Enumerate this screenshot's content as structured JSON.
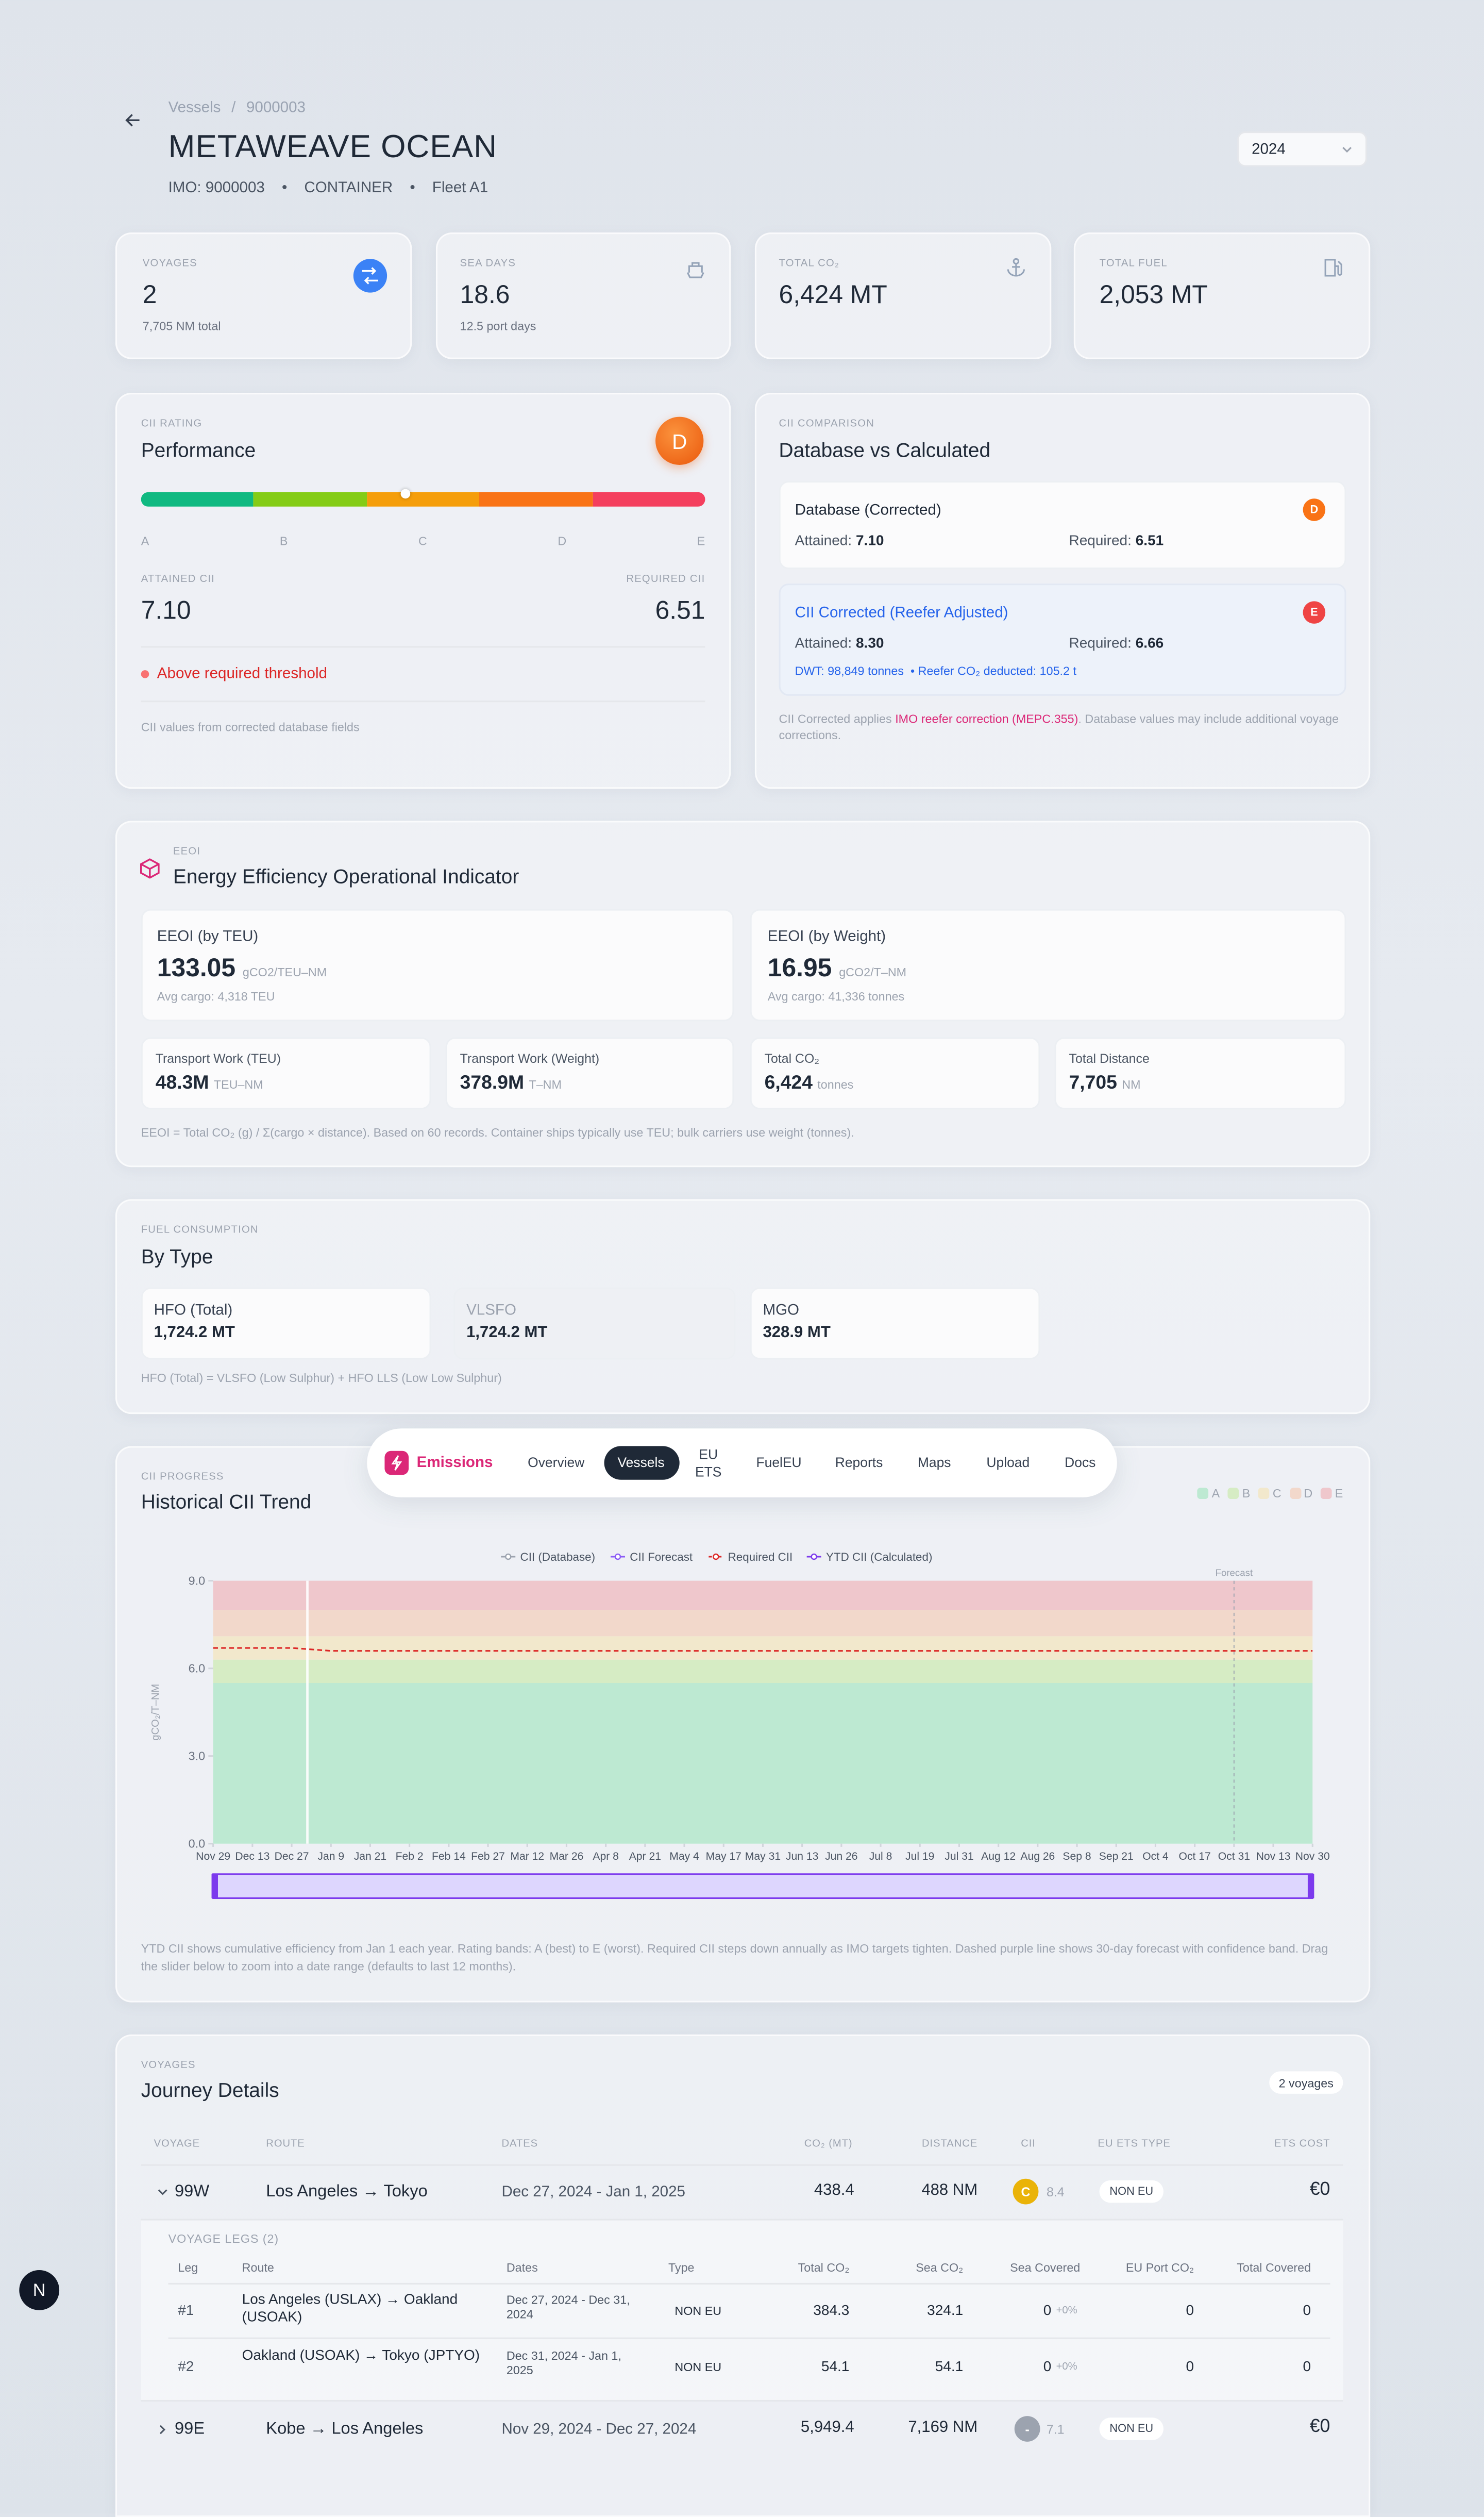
{
  "breadcrumb": [
    "Vessels",
    "9000003"
  ],
  "breadcrumb_separator": "/",
  "vessel": {
    "name": "METAWEAVE OCEAN",
    "imo": "IMO: 9000003",
    "type": "CONTAINER",
    "fleet": "Fleet A1"
  },
  "meta_separator": "•",
  "year_select": "2024",
  "stats": [
    {
      "label": "VOYAGES",
      "value": "2",
      "sub": "7,705 NM total"
    },
    {
      "label": "SEA DAYS",
      "value": "18.6",
      "sub": "12.5 port days"
    },
    {
      "label": "TOTAL CO₂",
      "value": "6,424 MT"
    },
    {
      "label": "TOTAL FUEL",
      "value": "2,053 MT"
    }
  ],
  "cii_rating": {
    "eyebrow": "CII RATING",
    "title": "Performance",
    "grade": "D",
    "scale": [
      "A",
      "B",
      "C",
      "D",
      "E"
    ],
    "attained_label": "ATTAINED CII",
    "attained": "7.10",
    "required_label": "REQUIRED CII",
    "required": "6.51",
    "status": "Above required threshold",
    "note": "CII values from corrected database fields"
  },
  "cii_comparison": {
    "eyebrow": "CII COMPARISON",
    "title": "Database vs Calculated",
    "attained_label": "Attained:",
    "required_label": "Required:",
    "database": {
      "title": "Database (Corrected)",
      "grade": "D",
      "attained": "7.10",
      "required": "6.51"
    },
    "corrected": {
      "title": "CII Corrected (Reefer Adjusted)",
      "grade": "E",
      "attained": "8.30",
      "required": "6.66",
      "dwt": "DWT: 98,849 tonnes",
      "reefer": "• Reefer CO₂ deducted: 105.2 t"
    },
    "note_start": "CII Corrected applies ",
    "note_link": "IMO reefer correction (MEPC.355)",
    "note_end": ". Database values may include additional voyage corrections."
  },
  "eeoi": {
    "eyebrow": "EEOI",
    "title": "Energy Efficiency Operational Indicator",
    "main": [
      {
        "label": "EEOI (by TEU)",
        "value": "133.05",
        "unit": "gCO2/TEU–NM",
        "sub": "Avg cargo: 4,318 TEU"
      },
      {
        "label": "EEOI (by Weight)",
        "value": "16.95",
        "unit": "gCO2/T–NM",
        "sub": "Avg cargo: 41,336 tonnes"
      }
    ],
    "metrics": [
      {
        "label": "Transport Work (TEU)",
        "value": "48.3M",
        "unit": "TEU–NM"
      },
      {
        "label": "Transport Work (Weight)",
        "value": "378.9M",
        "unit": "T–NM"
      },
      {
        "label": "Total CO₂",
        "value": "6,424",
        "unit": "tonnes"
      },
      {
        "label": "Total Distance",
        "value": "7,705",
        "unit": "NM"
      }
    ],
    "note": "EEOI = Total CO₂ (g) / Σ(cargo × distance). Based on 60 records. Container ships typically use TEU; bulk carriers use weight (tonnes)."
  },
  "fuel": {
    "eyebrow": "FUEL CONSUMPTION",
    "title": "By Type",
    "items": [
      {
        "label": "HFO (Total)",
        "value": "1,724.2 MT"
      },
      {
        "label": "VLSFO",
        "value": "1,724.2 MT"
      },
      {
        "label": "MGO",
        "value": "328.9 MT"
      }
    ],
    "note": "HFO (Total) = VLSFO (Low Sulphur) + HFO LLS (Low Low Sulphur)"
  },
  "nav": {
    "brand": "Emissions",
    "items": [
      "Overview",
      "Vessels",
      "EU\nETS",
      "FuelEU",
      "Reports",
      "Maps",
      "Upload",
      "Docs"
    ],
    "active": "Vessels"
  },
  "chart_eyebrow": "CII PROGRESS",
  "chart_data": {
    "type": "line",
    "title": "Historical CII Trend",
    "y_label": "gCO₂/T–NM",
    "categories": [
      "Nov 29",
      "Dec 13",
      "Dec 27",
      "Jan 9",
      "Jan 21",
      "Feb 2",
      "Feb 14",
      "Feb 27",
      "Mar 12",
      "Mar 26",
      "Apr 8",
      "Apr 21",
      "May 4",
      "May 17",
      "May 31",
      "Jun 13",
      "Jun 26",
      "Jul 8",
      "Jul 19",
      "Jul 31",
      "Aug 12",
      "Aug 26",
      "Sep 8",
      "Sep 21",
      "Oct 4",
      "Oct 17",
      "Oct 31",
      "Nov 13",
      "Nov 30"
    ],
    "ylim": [
      0,
      9
    ],
    "yticks": [
      {
        "value": 0,
        "label": "0.0"
      },
      {
        "value": 3,
        "label": "3.0"
      },
      {
        "value": 6,
        "label": "6.0"
      },
      {
        "value": 9,
        "label": "9.0"
      }
    ],
    "bands": [
      {
        "name": "A",
        "color": "#bde9d2",
        "upper": 5.5
      },
      {
        "name": "B",
        "color": "#d6ecc4",
        "upper": 6.3
      },
      {
        "name": "C",
        "color": "#f2e8cc",
        "upper": 7.1
      },
      {
        "name": "D",
        "color": "#f2d8cb",
        "upper": 8.0
      },
      {
        "name": "E",
        "color": "#efc7cc"
      }
    ],
    "series": [
      {
        "name": "Required CII",
        "color": "#dc2626",
        "dashed": true,
        "values": [
          6.7,
          6.7,
          6.7,
          6.6,
          6.6,
          6.6,
          6.6,
          6.6,
          6.6,
          6.6,
          6.6,
          6.6,
          6.6,
          6.6,
          6.6,
          6.6,
          6.6,
          6.6,
          6.6,
          6.6,
          6.6,
          6.6,
          6.6,
          6.6,
          6.6,
          6.6,
          6.6,
          6.6,
          6.6
        ]
      }
    ],
    "other_legend": [
      {
        "name": "CII (Database)",
        "color": "#9ca3af"
      },
      {
        "name": "CII Forecast",
        "color": "#8b5cf6"
      },
      {
        "name": "YTD CII (Calculated)",
        "color": "#7c3aed"
      }
    ],
    "forecast_label": "Forecast",
    "forecast_start": "Oct 31",
    "note": "YTD CII shows cumulative efficiency from Jan 1 each year. Rating bands: A (best) to E (worst). Required CII steps down annually as IMO targets tighten. Dashed purple line shows 30-day forecast with confidence band. Drag the slider below to zoom into a date range (defaults to last 12 months)."
  },
  "journeys": {
    "eyebrow": "VOYAGES",
    "title": "Journey Details",
    "count": "2 voyages",
    "headers": [
      "VOYAGE",
      "ROUTE",
      "DATES",
      "CO₂ (MT)",
      "DISTANCE",
      "CII",
      "EU ETS TYPE",
      "ETS COST"
    ],
    "rows": [
      {
        "voyage": "99W",
        "route": "Los Angeles → Tokyo",
        "dates": "Dec 27, 2024 - Jan 1, 2025",
        "co2": "438.4",
        "distance": "488 NM",
        "grade": "C",
        "cii": "8.4",
        "ets_type": "NON EU",
        "ets_cost": "€0"
      },
      {
        "voyage": "99E",
        "route": "Kobe → Los Angeles",
        "dates": "Nov 29, 2024 - Dec 27, 2024",
        "co2": "5,949.4",
        "distance": "7,169 NM",
        "grade": "-",
        "cii": "7.1",
        "ets_type": "NON EU",
        "ets_cost": "€0"
      }
    ],
    "legs_title": "VOYAGE LEGS (2)",
    "leg_headers": [
      "Leg",
      "Route",
      "Dates",
      "Type",
      "Total CO₂",
      "Sea CO₂",
      "Sea Covered",
      "EU Port CO₂",
      "Total Covered"
    ],
    "legs": [
      {
        "leg": "#1",
        "route": "Los Angeles (USLAX) → Oakland (USOAK)",
        "dates": "Dec 27, 2024 - Dec 31, 2024",
        "type": "NON EU",
        "total_co2": "384.3",
        "sea_co2": "324.1",
        "sea_covered": "0",
        "sea_covered_pct": "+0%",
        "eu_port_co2": "0",
        "total_covered": "0"
      },
      {
        "leg": "#2",
        "route": "Oakland (USOAK) → Tokyo (JPTYO)",
        "dates": "Dec 31, 2024 - Jan 1, 2025",
        "type": "NON EU",
        "total_co2": "54.1",
        "sea_co2": "54.1",
        "sea_covered": "0",
        "sea_covered_pct": "+0%",
        "eu_port_co2": "0",
        "total_covered": "0"
      }
    ]
  },
  "avatar": "N"
}
